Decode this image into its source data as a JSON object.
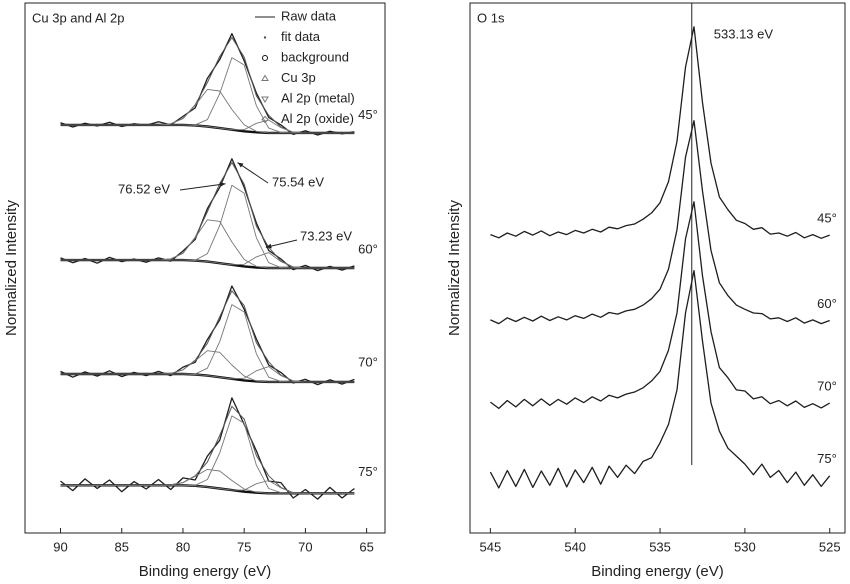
{
  "chart_data": [
    {
      "type": "line",
      "panel_label": "Cu 3p and Al 2p",
      "x_label": "Binding energy (eV)",
      "y_label": "Normalized Intensity",
      "xlim": [
        92.9,
        63.5
      ],
      "xticks": [
        90,
        85,
        80,
        75,
        70,
        65
      ],
      "ylim": [
        0,
        10
      ],
      "legend": "upper right",
      "x": [
        90,
        89,
        88,
        87,
        86,
        85,
        84,
        83,
        82,
        81,
        80,
        79,
        78,
        77,
        76,
        75,
        74,
        73,
        72,
        71,
        70,
        69,
        68,
        67,
        66
      ],
      "spectra_labels": [
        "45°",
        "60°",
        "70°",
        "75°"
      ],
      "annotations": [
        {
          "value": 76.52,
          "label": "76.52 eV"
        },
        {
          "value": 75.54,
          "label": "75.54 eV"
        },
        {
          "value": 73.23,
          "label": "73.23 eV"
        }
      ],
      "series": [
        {
          "name": "Raw data",
          "color": "#1e1e1e",
          "marker": "line",
          "line_width": 1.3,
          "values": [
            [
              7.74,
              7.66,
              7.73,
              7.68,
              7.75,
              7.67,
              7.72,
              7.69,
              7.76,
              7.7,
              7.86,
              8.02,
              8.58,
              8.93,
              9.42,
              8.91,
              8.3,
              7.84,
              7.7,
              7.52,
              7.59,
              7.51,
              7.58,
              7.53,
              7.57
            ],
            [
              5.19,
              5.1,
              5.18,
              5.09,
              5.2,
              5.12,
              5.17,
              5.11,
              5.19,
              5.13,
              5.32,
              5.54,
              6.12,
              6.52,
              7.06,
              6.52,
              5.85,
              5.33,
              5.17,
              4.97,
              5.05,
              4.95,
              5.03,
              4.96,
              5.04
            ],
            [
              3.05,
              2.94,
              3.04,
              2.96,
              3.06,
              2.95,
              3.03,
              2.97,
              3.05,
              2.97,
              3.13,
              3.22,
              3.65,
              4.02,
              4.66,
              4.22,
              3.66,
              3.17,
              3.03,
              2.83,
              2.9,
              2.8,
              2.89,
              2.81,
              2.9
            ],
            [
              0.98,
              0.8,
              1.02,
              0.84,
              1.0,
              0.78,
              0.97,
              0.83,
              1.01,
              0.82,
              1.04,
              1.0,
              1.45,
              1.75,
              2.55,
              2.05,
              1.55,
              0.98,
              0.95,
              0.66,
              0.82,
              0.64,
              0.86,
              0.66,
              0.84
            ]
          ]
        },
        {
          "name": "fit data",
          "color": "#555555",
          "marker": "dot",
          "line_width": 1,
          "values": [
            [
              7.7,
              7.7,
              7.7,
              7.7,
              7.7,
              7.7,
              7.7,
              7.7,
              7.7,
              7.72,
              7.82,
              8.08,
              8.5,
              8.99,
              9.35,
              8.98,
              8.25,
              7.88,
              7.66,
              7.56,
              7.55,
              7.55,
              7.55,
              7.55,
              7.55
            ],
            [
              5.15,
              5.15,
              5.15,
              5.15,
              5.15,
              5.15,
              5.15,
              5.15,
              5.15,
              5.17,
              5.28,
              5.58,
              6.06,
              6.59,
              6.99,
              6.58,
              5.79,
              5.39,
              5.13,
              5.02,
              5.0,
              5.0,
              5.0,
              5.0,
              5.0
            ],
            [
              3.0,
              3.0,
              3.0,
              3.0,
              3.0,
              3.0,
              3.0,
              3.0,
              3.0,
              3.01,
              3.08,
              3.26,
              3.58,
              4.08,
              4.57,
              4.29,
              3.59,
              3.23,
              2.98,
              2.87,
              2.85,
              2.85,
              2.85,
              2.85,
              2.85
            ],
            [
              0.9,
              0.9,
              0.9,
              0.9,
              0.9,
              0.9,
              0.9,
              0.9,
              0.9,
              0.91,
              0.95,
              1.08,
              1.34,
              1.84,
              2.39,
              2.15,
              1.46,
              1.08,
              0.86,
              0.76,
              0.75,
              0.75,
              0.75,
              0.75,
              0.75
            ]
          ]
        },
        {
          "name": "background",
          "color": "#111111",
          "marker": "circle",
          "line_width": 2.4,
          "values": [
            [
              7.7,
              7.7,
              7.7,
              7.7,
              7.7,
              7.7,
              7.7,
              7.7,
              7.7,
              7.7,
              7.7,
              7.69,
              7.67,
              7.64,
              7.61,
              7.58,
              7.56,
              7.55,
              7.55,
              7.55,
              7.55,
              7.55,
              7.55,
              7.55,
              7.55
            ],
            [
              5.15,
              5.15,
              5.15,
              5.15,
              5.15,
              5.15,
              5.15,
              5.15,
              5.15,
              5.15,
              5.15,
              5.14,
              5.12,
              5.09,
              5.06,
              5.03,
              5.01,
              5.0,
              5.0,
              5.0,
              5.0,
              5.0,
              5.0,
              5.0,
              5.0
            ],
            [
              3.0,
              3.0,
              3.0,
              3.0,
              3.0,
              3.0,
              3.0,
              3.0,
              3.0,
              3.0,
              3.0,
              2.99,
              2.97,
              2.94,
              2.91,
              2.88,
              2.86,
              2.85,
              2.85,
              2.85,
              2.85,
              2.85,
              2.85,
              2.85,
              2.85
            ],
            [
              0.9,
              0.9,
              0.9,
              0.9,
              0.9,
              0.9,
              0.9,
              0.9,
              0.9,
              0.9,
              0.9,
              0.89,
              0.87,
              0.84,
              0.81,
              0.78,
              0.76,
              0.75,
              0.75,
              0.75,
              0.75,
              0.75,
              0.75,
              0.75,
              0.75
            ]
          ]
        },
        {
          "name": "Cu 3p",
          "color": "#777777",
          "marker": "triangle-up",
          "line_width": 0.9,
          "values": [
            [
              7.7,
              7.7,
              7.7,
              7.7,
              7.7,
              7.7,
              7.7,
              7.7,
              7.7,
              7.72,
              7.82,
              8.07,
              8.37,
              8.34,
              7.99,
              7.7,
              7.58,
              7.55,
              7.55,
              7.55,
              7.55,
              7.55,
              7.55,
              7.55,
              7.55
            ],
            [
              5.15,
              5.15,
              5.15,
              5.15,
              5.15,
              5.15,
              5.15,
              5.15,
              5.15,
              5.17,
              5.28,
              5.57,
              5.91,
              5.88,
              5.49,
              5.16,
              5.03,
              5.0,
              5.0,
              5.0,
              5.0,
              5.0,
              5.0,
              5.0,
              5.0
            ],
            [
              3.0,
              3.0,
              3.0,
              3.0,
              3.0,
              3.0,
              3.0,
              3.0,
              3.0,
              3.01,
              3.08,
              3.25,
              3.44,
              3.41,
              3.17,
              2.96,
              2.87,
              2.85,
              2.85,
              2.85,
              2.85,
              2.85,
              2.85,
              2.85,
              2.85
            ],
            [
              0.9,
              0.9,
              0.9,
              0.9,
              0.9,
              0.9,
              0.9,
              0.9,
              0.9,
              0.91,
              0.95,
              1.07,
              1.2,
              1.17,
              0.99,
              0.83,
              0.77,
              0.75,
              0.75,
              0.75,
              0.75,
              0.75,
              0.75,
              0.75,
              0.75
            ]
          ]
        },
        {
          "name": "Al 2p (metal)",
          "color": "#777777",
          "marker": "triangle-down",
          "line_width": 0.9,
          "values": [
            [
              7.7,
              7.7,
              7.7,
              7.7,
              7.7,
              7.7,
              7.7,
              7.7,
              7.7,
              7.7,
              7.7,
              7.69,
              7.67,
              7.64,
              7.61,
              7.61,
              7.73,
              7.79,
              7.65,
              7.56,
              7.55,
              7.55,
              7.55,
              7.55,
              7.55
            ],
            [
              5.15,
              5.15,
              5.15,
              5.15,
              5.15,
              5.15,
              5.15,
              5.15,
              5.15,
              5.15,
              5.15,
              5.14,
              5.12,
              5.09,
              5.06,
              5.07,
              5.21,
              5.29,
              5.12,
              5.02,
              5.0,
              5.0,
              5.0,
              5.0,
              5.0
            ],
            [
              3.0,
              3.0,
              3.0,
              3.0,
              3.0,
              3.0,
              3.0,
              3.0,
              3.0,
              3.0,
              3.0,
              2.99,
              2.97,
              2.94,
              2.91,
              2.92,
              3.06,
              3.14,
              2.97,
              2.87,
              2.85,
              2.85,
              2.85,
              2.85,
              2.85
            ],
            [
              0.9,
              0.9,
              0.9,
              0.9,
              0.9,
              0.9,
              0.9,
              0.9,
              0.9,
              0.9,
              0.9,
              0.89,
              0.87,
              0.84,
              0.81,
              0.81,
              0.93,
              0.99,
              0.85,
              0.76,
              0.75,
              0.75,
              0.75,
              0.75,
              0.75
            ]
          ]
        },
        {
          "name": "Al 2p (oxide)",
          "color": "#777777",
          "marker": "diamond",
          "line_width": 0.9,
          "values": [
            [
              7.7,
              7.7,
              7.7,
              7.7,
              7.7,
              7.7,
              7.7,
              7.7,
              7.7,
              7.7,
              7.7,
              7.7,
              7.8,
              8.29,
              8.97,
              8.83,
              8.06,
              7.64,
              7.56,
              7.55,
              7.55,
              7.55,
              7.55,
              7.55,
              7.55
            ],
            [
              5.15,
              5.15,
              5.15,
              5.15,
              5.15,
              5.15,
              5.15,
              5.15,
              5.15,
              5.15,
              5.15,
              5.15,
              5.27,
              5.8,
              6.56,
              6.41,
              5.57,
              5.1,
              5.01,
              5.0,
              5.0,
              5.0,
              5.0,
              5.0,
              5.0
            ],
            [
              3.0,
              3.0,
              3.0,
              3.0,
              3.0,
              3.0,
              3.0,
              3.0,
              3.0,
              3.0,
              3.0,
              3.0,
              3.11,
              3.61,
              4.31,
              4.17,
              3.38,
              2.94,
              2.86,
              2.85,
              2.85,
              2.85,
              2.85,
              2.85,
              2.85
            ],
            [
              0.9,
              0.9,
              0.9,
              0.9,
              0.9,
              0.9,
              0.9,
              0.9,
              0.9,
              0.9,
              0.9,
              0.9,
              1.01,
              1.51,
              2.21,
              2.07,
              1.28,
              0.84,
              0.76,
              0.75,
              0.75,
              0.75,
              0.75,
              0.75,
              0.75
            ]
          ]
        }
      ]
    },
    {
      "type": "line",
      "panel_label": "O 1s",
      "x_label": "Binding energy (eV)",
      "y_label": "Normalized Intensity",
      "xlim": [
        546.2,
        524.1
      ],
      "xticks": [
        545,
        540,
        535,
        530,
        525
      ],
      "ylim": [
        0,
        10
      ],
      "x": [
        545,
        544.5,
        544,
        543.5,
        543,
        542.5,
        542,
        541.5,
        541,
        540.5,
        540,
        539.5,
        539,
        538.5,
        538,
        537.5,
        537,
        536.5,
        536,
        535.5,
        535,
        534.5,
        534,
        533.5,
        533,
        532.5,
        532,
        531.5,
        531,
        530.5,
        530,
        529.5,
        529,
        528.5,
        528,
        527.5,
        527,
        526.5,
        526,
        525.5,
        525
      ],
      "spectra_labels": [
        "45°",
        "60°",
        "70°",
        "75°"
      ],
      "reference_line": {
        "value": 533.13,
        "label": "533.13 eV"
      },
      "series": [
        {
          "color": "#1e1e1e",
          "line_width": 1.3,
          "values": [
            [
              5.63,
              5.57,
              5.66,
              5.6,
              5.69,
              5.62,
              5.7,
              5.61,
              5.68,
              5.63,
              5.71,
              5.66,
              5.73,
              5.68,
              5.77,
              5.74,
              5.8,
              5.83,
              5.92,
              6.04,
              6.23,
              6.63,
              7.39,
              8.79,
              9.55,
              8.12,
              6.98,
              6.34,
              6.1,
              5.9,
              5.84,
              5.73,
              5.76,
              5.64,
              5.66,
              5.6,
              5.67,
              5.57,
              5.63,
              5.56,
              5.62
            ],
            [
              4.02,
              3.95,
              4.06,
              3.99,
              4.07,
              4.0,
              4.09,
              4.01,
              4.08,
              4.02,
              4.1,
              4.05,
              4.13,
              4.07,
              4.16,
              4.13,
              4.19,
              4.22,
              4.3,
              4.42,
              4.6,
              4.98,
              5.72,
              7.09,
              7.78,
              6.45,
              5.33,
              4.72,
              4.48,
              4.3,
              4.22,
              4.15,
              4.14,
              4.04,
              4.06,
              3.99,
              4.06,
              3.96,
              4.02,
              3.95,
              4.01
            ],
            [
              2.47,
              2.35,
              2.5,
              2.38,
              2.52,
              2.4,
              2.53,
              2.41,
              2.52,
              2.43,
              2.55,
              2.46,
              2.57,
              2.49,
              2.6,
              2.55,
              2.62,
              2.66,
              2.74,
              2.87,
              3.05,
              3.45,
              4.15,
              5.55,
              6.25,
              4.85,
              3.8,
              3.12,
              2.93,
              2.7,
              2.68,
              2.53,
              2.57,
              2.44,
              2.5,
              2.4,
              2.49,
              2.37,
              2.44,
              2.36,
              2.45
            ],
            [
              1.15,
              0.85,
              1.18,
              0.88,
              1.2,
              0.86,
              1.17,
              0.9,
              1.22,
              0.87,
              1.19,
              0.95,
              1.24,
              0.92,
              1.26,
              1.05,
              1.28,
              1.12,
              1.35,
              1.42,
              1.7,
              2.05,
              2.7,
              4.15,
              4.95,
              3.62,
              2.45,
              1.92,
              1.6,
              1.45,
              1.3,
              1.1,
              1.3,
              1.05,
              1.18,
              0.95,
              1.15,
              0.9,
              1.1,
              0.88,
              1.08
            ]
          ]
        }
      ]
    }
  ]
}
